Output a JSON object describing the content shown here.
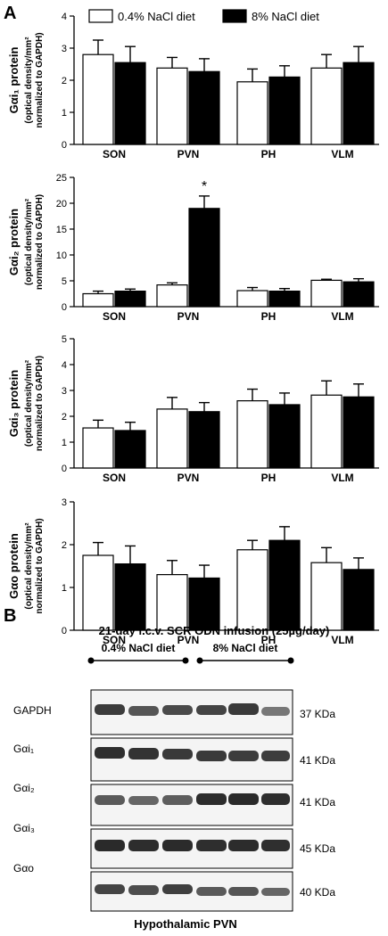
{
  "panel_a_label": "A",
  "panel_b_label": "B",
  "legend": {
    "items": [
      {
        "label": "0.4% NaCl diet",
        "color": "#ffffff"
      },
      {
        "label": "8% NaCl diet",
        "color": "#000000"
      }
    ]
  },
  "colors": {
    "low_salt_fill": "#ffffff",
    "high_salt_fill": "#000000",
    "stroke": "#000000"
  },
  "chart_data": [
    {
      "type": "bar",
      "ylabel_main": "Gαi₁ protein",
      "ylabel_sub1": "(optical density/mm²",
      "ylabel_sub2": "normalized to GAPDH)",
      "categories": [
        "SON",
        "PVN",
        "PH",
        "VLM"
      ],
      "ylim": [
        0,
        4
      ],
      "yticks": [
        0,
        1,
        2,
        3,
        4
      ],
      "series": [
        {
          "name": "0.4% NaCl diet",
          "values": [
            2.8,
            2.38,
            1.95,
            2.38
          ],
          "errors": [
            0.45,
            0.33,
            0.4,
            0.42
          ]
        },
        {
          "name": "8% NaCl diet",
          "values": [
            2.55,
            2.27,
            2.1,
            2.55
          ],
          "errors": [
            0.5,
            0.4,
            0.35,
            0.5
          ]
        }
      ],
      "annotations": []
    },
    {
      "type": "bar",
      "ylabel_main": "Gαi₂ protein",
      "ylabel_sub1": "(optical density/mm²",
      "ylabel_sub2": "normalized to GAPDH)",
      "categories": [
        "SON",
        "PVN",
        "PH",
        "VLM"
      ],
      "ylim": [
        0,
        25
      ],
      "yticks": [
        0,
        5,
        10,
        15,
        20,
        25
      ],
      "series": [
        {
          "name": "0.4% NaCl diet",
          "values": [
            2.5,
            4.2,
            3.1,
            5.1
          ],
          "errors": [
            0.5,
            0.4,
            0.6,
            0.2
          ]
        },
        {
          "name": "8% NaCl diet",
          "values": [
            3.0,
            19.0,
            3.0,
            4.8
          ],
          "errors": [
            0.4,
            2.4,
            0.5,
            0.6
          ]
        }
      ],
      "annotations": [
        {
          "text": "*",
          "category": "PVN",
          "series": 1
        }
      ]
    },
    {
      "type": "bar",
      "ylabel_main": "Gαi₃ protein",
      "ylabel_sub1": "(optical density/mm²",
      "ylabel_sub2": "normalized to GAPDH)",
      "categories": [
        "SON",
        "PVN",
        "PH",
        "VLM"
      ],
      "ylim": [
        0,
        5
      ],
      "yticks": [
        0,
        1,
        2,
        3,
        4,
        5
      ],
      "series": [
        {
          "name": "0.4% NaCl diet",
          "values": [
            1.55,
            2.28,
            2.6,
            2.82
          ],
          "errors": [
            0.3,
            0.45,
            0.45,
            0.55
          ]
        },
        {
          "name": "8% NaCl diet",
          "values": [
            1.45,
            2.18,
            2.45,
            2.75
          ],
          "errors": [
            0.32,
            0.35,
            0.45,
            0.5
          ]
        }
      ],
      "annotations": []
    },
    {
      "type": "bar",
      "ylabel_main": "Gαo protein",
      "ylabel_sub1": "(optical density/mm²",
      "ylabel_sub2": "normalized to GAPDH)",
      "categories": [
        "SON",
        "PVN",
        "PH",
        "VLM"
      ],
      "ylim": [
        0,
        3
      ],
      "yticks": [
        0,
        1,
        2,
        3
      ],
      "series": [
        {
          "name": "0.4% NaCl diet",
          "values": [
            1.75,
            1.3,
            1.88,
            1.58
          ],
          "errors": [
            0.3,
            0.33,
            0.22,
            0.35
          ]
        },
        {
          "name": "8% NaCl diet",
          "values": [
            1.55,
            1.22,
            2.1,
            1.42
          ],
          "errors": [
            0.42,
            0.3,
            0.32,
            0.27
          ]
        }
      ],
      "annotations": []
    }
  ],
  "western_blot": {
    "title": "21-day i.c.v. SCR ODN infusion (25µg/day)",
    "group_labels": [
      "0.4% NaCl diet",
      "8% NaCl diet"
    ],
    "rows": [
      {
        "label": "GAPDH",
        "kda": "37 KDa"
      },
      {
        "label": "Gαi₁",
        "kda": "41 KDa"
      },
      {
        "label": "Gαi₂",
        "kda": "41 KDa"
      },
      {
        "label": "Gαi₃",
        "kda": "45 KDa"
      },
      {
        "label": "Gαo",
        "kda": "40 KDa"
      }
    ],
    "caption": "Hypothalamic PVN"
  }
}
